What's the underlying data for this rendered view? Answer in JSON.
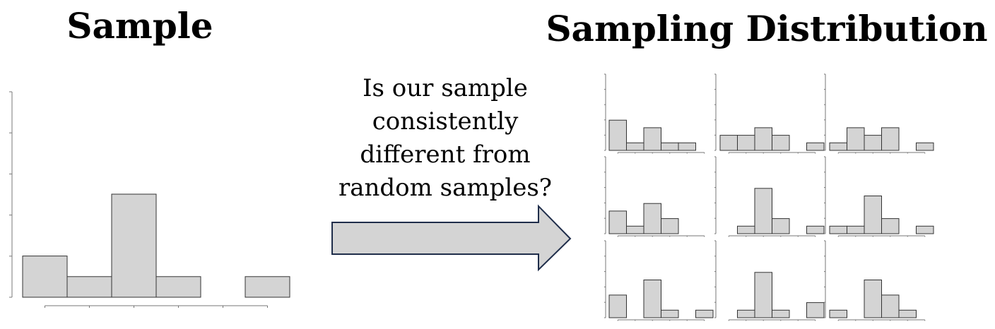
{
  "header": {
    "left_title": "Sample",
    "right_title": "Sampling Distribution"
  },
  "question": {
    "lines": [
      "Is our sample",
      "consistently",
      "different from",
      "random samples?"
    ]
  },
  "sample_histogram": {
    "values": [
      2,
      1,
      5,
      1,
      0,
      1
    ]
  },
  "sampling_histograms": [
    {
      "values": [
        4,
        1,
        3,
        1,
        1,
        0
      ]
    },
    {
      "values": [
        2,
        2,
        3,
        2,
        0,
        1
      ]
    },
    {
      "values": [
        1,
        3,
        2,
        3,
        0,
        1
      ]
    },
    {
      "values": [
        3,
        1,
        4,
        2,
        0,
        0
      ]
    },
    {
      "values": [
        0,
        1,
        6,
        2,
        0,
        1
      ]
    },
    {
      "values": [
        1,
        1,
        5,
        2,
        0,
        1
      ]
    },
    {
      "values": [
        3,
        0,
        5,
        1,
        0,
        1
      ]
    },
    {
      "values": [
        0,
        1,
        6,
        1,
        0,
        2
      ]
    },
    {
      "values": [
        1,
        0,
        5,
        3,
        1,
        0
      ]
    }
  ]
}
